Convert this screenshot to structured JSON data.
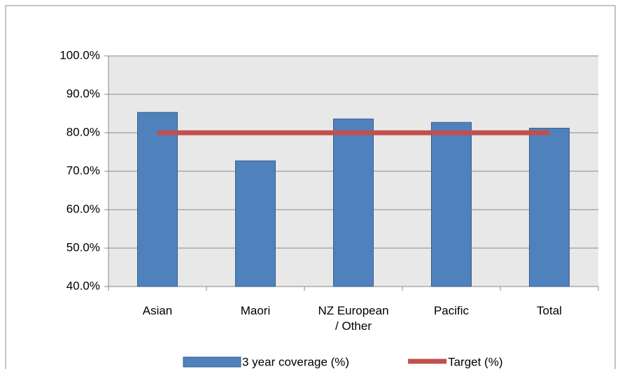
{
  "chart_data": {
    "type": "bar",
    "categories": [
      "Asian",
      "Maori",
      "NZ European / Other",
      "Pacific",
      "Total"
    ],
    "series": [
      {
        "name": "3 year coverage (%)",
        "type": "bar",
        "color": "#4f81bd",
        "values": [
          85.3,
          72.7,
          83.6,
          82.7,
          81.2
        ]
      },
      {
        "name": "Target (%)",
        "type": "line",
        "color": "#c0504d",
        "values": [
          80,
          80,
          80,
          80,
          80
        ]
      }
    ],
    "ylim": [
      40,
      100
    ],
    "yticks": [
      {
        "value": 40,
        "label": "40.0%"
      },
      {
        "value": 50,
        "label": "50.0%"
      },
      {
        "value": 60,
        "label": "60.0%"
      },
      {
        "value": 70,
        "label": "70.0%"
      },
      {
        "value": 80,
        "label": "80.0%"
      },
      {
        "value": 90,
        "label": "90.0%"
      },
      {
        "value": 100,
        "label": "100.0%"
      }
    ],
    "grid": true,
    "legend": "bottom"
  }
}
